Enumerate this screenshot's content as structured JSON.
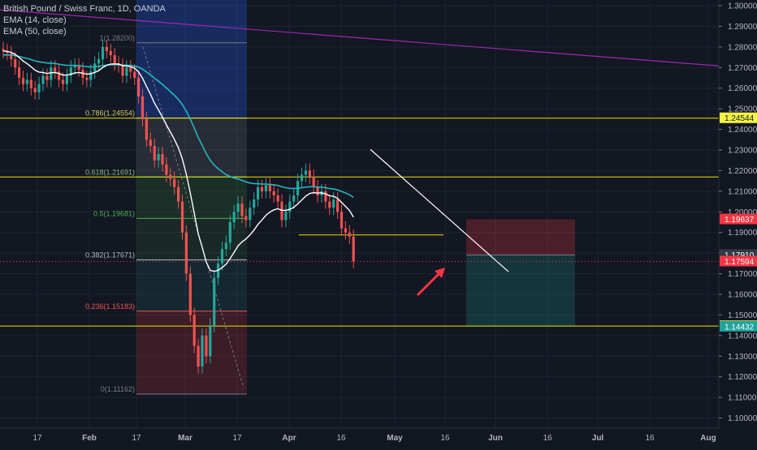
{
  "legend": {
    "symbol": "British Pound / Swiss Franc, 1D, OANDA",
    "ema_fast": "EMA (14, close)",
    "ema_slow": "EMA (50, close)"
  },
  "colors": {
    "background": "#131722",
    "axis_text": "#b2b5be",
    "grid": "#1f2331",
    "candle_up": "#26a69a",
    "candle_down": "#ef5350",
    "ema_fast": "#ffffff",
    "ema_slow": "#25b6bd",
    "level_line": "#e6e600",
    "trendline": "#9c27b0",
    "badge_yellow": "#f5f542",
    "badge_red": "#f23645",
    "badge_gray": "#363a45",
    "badge_teal": "#22a29b"
  },
  "price_axis": {
    "ticks": [
      "1.30000",
      "1.29000",
      "1.28000",
      "1.27000",
      "1.26000",
      "1.25000",
      "1.24000",
      "1.23000",
      "1.22000",
      "1.21000",
      "1.20000",
      "1.19000",
      "1.18000",
      "1.17000",
      "1.16000",
      "1.15000",
      "1.14000",
      "1.13000",
      "1.12000",
      "1.11000",
      "1.10000"
    ],
    "badges": [
      {
        "label": "1.24544",
        "price": 1.24544,
        "style": "yellow"
      },
      {
        "label": "1.19637",
        "price": 1.19637,
        "style": "red"
      },
      {
        "label": "1.17910",
        "price": 1.1791,
        "style": "gray"
      },
      {
        "label": "1.17594",
        "price": 1.17594,
        "style": "red"
      },
      {
        "label": "1.14460",
        "price": 1.1446,
        "style": "yellow"
      },
      {
        "label": "1.14432",
        "price": 1.14432,
        "style": "teal"
      }
    ]
  },
  "time_axis": {
    "ticks": [
      "17",
      "Feb",
      "17",
      "Mar",
      "17",
      "Apr",
      "16",
      "May",
      "16",
      "Jun",
      "16",
      "Jul",
      "16",
      "Aug"
    ],
    "bold": [
      "Feb",
      "Mar",
      "Apr",
      "May",
      "Jun",
      "Jul",
      "Aug"
    ]
  },
  "fibonacci": {
    "levels": [
      {
        "label": "1(1.28200)",
        "price": 1.282,
        "color": "#787b86"
      },
      {
        "label": "0.786(1.24554)",
        "price": 1.24554,
        "color": "#cccc66"
      },
      {
        "label": "0.618(1.21691)",
        "price": 1.21691,
        "color": "#7fb77e"
      },
      {
        "label": "0.5(1.19681)",
        "price": 1.19681,
        "color": "#4caf50"
      },
      {
        "label": "0.382(1.17671)",
        "price": 1.17671,
        "color": "#b2b5be"
      },
      {
        "label": "0.236(1.15183)",
        "price": 1.15183,
        "color": "#ef5350"
      },
      {
        "label": "0(1.11162)",
        "price": 1.11162,
        "color": "#787b86"
      }
    ]
  },
  "horizontal_levels": [
    1.24544,
    1.21691,
    1.1446
  ],
  "position_tool": {
    "stop": 1.19637,
    "entry": 1.1791,
    "target": 1.1446
  },
  "current_price": 1.17594,
  "arrow_icon": "red-arrow-up-right"
}
